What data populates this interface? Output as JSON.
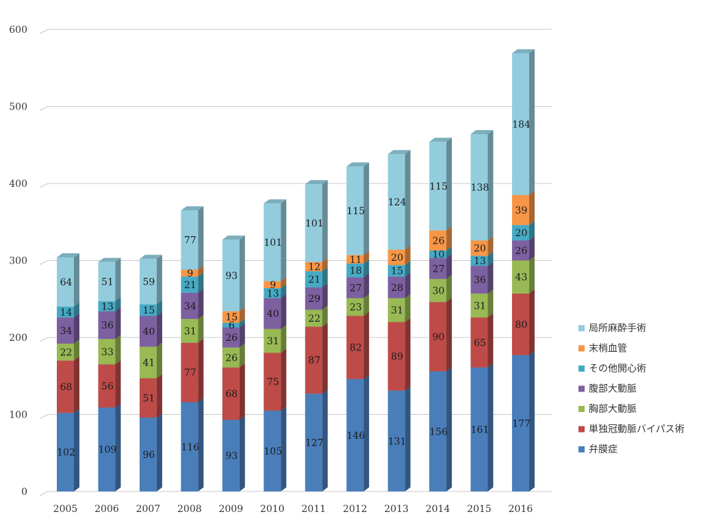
{
  "chart_data": {
    "type": "bar",
    "stacked": true,
    "style": "3d-column",
    "title": "",
    "xlabel": "",
    "ylabel": "",
    "ylim": [
      0,
      600
    ],
    "yticks": [
      0,
      100,
      200,
      300,
      400,
      500,
      600
    ],
    "grid": true,
    "legend_position": "right",
    "categories": [
      "2005",
      "2006",
      "2007",
      "2008",
      "2009",
      "2010",
      "2011",
      "2012",
      "2013",
      "2014",
      "2015",
      "2016"
    ],
    "series": [
      {
        "name": "弁膜症",
        "color": "#4a7ebb",
        "values": [
          102,
          109,
          96,
          116,
          93,
          105,
          127,
          146,
          131,
          156,
          161,
          177
        ]
      },
      {
        "name": "単独冠動脈バイパス術",
        "color": "#be4b48",
        "values": [
          68,
          56,
          51,
          77,
          68,
          75,
          87,
          82,
          89,
          90,
          65,
          80
        ]
      },
      {
        "name": "胸部大動脈",
        "color": "#98b954",
        "values": [
          22,
          33,
          41,
          31,
          26,
          31,
          22,
          23,
          31,
          30,
          31,
          43
        ]
      },
      {
        "name": "腹部大動脈",
        "color": "#7d60a0",
        "values": [
          34,
          36,
          40,
          34,
          26,
          40,
          29,
          27,
          28,
          27,
          36,
          26
        ]
      },
      {
        "name": "その他開心術",
        "color": "#46aac5",
        "values": [
          14,
          13,
          15,
          21,
          6,
          13,
          21,
          18,
          15,
          10,
          13,
          20
        ]
      },
      {
        "name": "末梢血管",
        "color": "#f79646",
        "values": [
          null,
          null,
          null,
          9,
          15,
          9,
          12,
          11,
          20,
          26,
          20,
          39
        ]
      },
      {
        "name": "局所麻酔手術",
        "color": "#93cddd",
        "values": [
          64,
          51,
          59,
          77,
          93,
          101,
          101,
          115,
          124,
          115,
          138,
          184
        ]
      }
    ]
  }
}
